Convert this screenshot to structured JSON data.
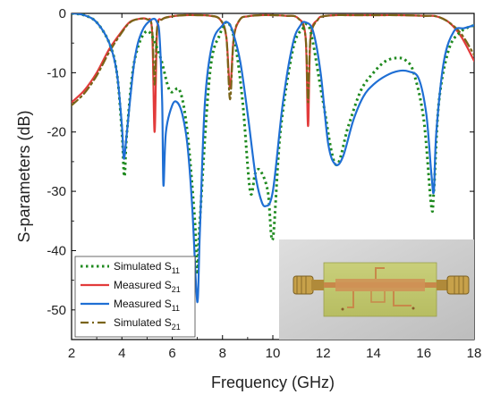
{
  "chart_data": {
    "type": "line",
    "title": "",
    "xlabel": "Frequency (GHz)",
    "ylabel": "S-parameters (dB)",
    "xlim": [
      2,
      18
    ],
    "ylim": [
      -55,
      0
    ],
    "xticks": [
      2,
      4,
      6,
      8,
      10,
      12,
      14,
      16,
      18
    ],
    "yticks": [
      0,
      -10,
      -20,
      -30,
      -40,
      -50
    ],
    "grid": false,
    "legend_position": "bottom-left",
    "inset_image": "photo of fabricated microstrip filter",
    "series": [
      {
        "name": "Simulated S11",
        "label_main": "Simulated S",
        "label_sub": "11",
        "color": "#1f8a1f",
        "style": "dotted",
        "x": [
          2,
          2.5,
          3,
          3.5,
          3.8,
          4.0,
          4.1,
          4.2,
          4.5,
          5.0,
          5.5,
          5.9,
          6.3,
          6.6,
          6.9,
          7.0,
          7.1,
          7.5,
          7.9,
          8.2,
          8.5,
          8.8,
          9.1,
          9.3,
          9.5,
          9.8,
          10.0,
          10.3,
          10.8,
          11.2,
          11.4,
          11.6,
          12.0,
          12.5,
          13.0,
          13.5,
          14.0,
          14.5,
          15.0,
          15.3,
          15.6,
          16.0,
          16.3,
          16.4,
          16.6,
          17.0,
          17.5,
          18
        ],
        "y": [
          0,
          -0.3,
          -1.5,
          -5,
          -10,
          -20,
          -27.5,
          -20,
          -8,
          -3,
          -7,
          -13,
          -13,
          -20,
          -35,
          -44,
          -35,
          -10,
          -3.5,
          -1.5,
          -5,
          -15,
          -30,
          -27,
          -26.5,
          -30,
          -38,
          -20,
          -6,
          -2.5,
          -2,
          -5,
          -15,
          -25.5,
          -19,
          -13,
          -10,
          -8,
          -7.5,
          -8,
          -10,
          -18,
          -32.5,
          -30,
          -15,
          -6,
          -3,
          -2
        ]
      },
      {
        "name": "Measured S21",
        "label_main": "Measured S",
        "label_sub": "21",
        "color": "#e23b3b",
        "style": "solid",
        "x": [
          2,
          2.5,
          3,
          3.5,
          4.0,
          4.3,
          4.6,
          5.0,
          5.2,
          5.3,
          5.4,
          5.6,
          6.0,
          6.5,
          7.0,
          7.5,
          7.9,
          8.15,
          8.3,
          8.45,
          8.7,
          9.0,
          9.5,
          10.0,
          10.5,
          11.0,
          11.3,
          11.4,
          11.5,
          11.8,
          12.0,
          12.5,
          13.0,
          14.0,
          15.0,
          16.0,
          16.5,
          17.0,
          17.5,
          18
        ],
        "y": [
          -15,
          -13,
          -10,
          -6,
          -3,
          -1.5,
          -1,
          -1,
          -3,
          -20,
          -3,
          -1,
          -0.5,
          -0.3,
          -0.3,
          -0.4,
          -1,
          -4,
          -12.5,
          -4,
          -1,
          -0.5,
          -0.3,
          -0.3,
          -0.4,
          -0.8,
          -4,
          -19,
          -4,
          -1,
          -0.5,
          -0.3,
          -0.3,
          -0.3,
          -0.3,
          -0.4,
          -0.5,
          -1.5,
          -4,
          -8
        ]
      },
      {
        "name": "Measured S11",
        "label_main": "Measured S",
        "label_sub": "11",
        "color": "#1f6fd4",
        "style": "solid",
        "x": [
          2,
          2.5,
          3,
          3.5,
          3.8,
          4.0,
          4.08,
          4.2,
          4.5,
          4.8,
          5.2,
          5.4,
          5.5,
          5.6,
          5.65,
          5.75,
          6.0,
          6.2,
          6.4,
          6.6,
          6.8,
          6.95,
          7.02,
          7.1,
          7.3,
          7.6,
          8.0,
          8.2,
          8.4,
          8.7,
          9.0,
          9.3,
          9.5,
          9.7,
          10.0,
          10.4,
          10.8,
          11.1,
          11.3,
          11.6,
          11.9,
          12.2,
          12.5,
          12.8,
          13.2,
          13.6,
          14.0,
          14.5,
          15.0,
          15.4,
          15.8,
          16.1,
          16.3,
          16.4,
          16.5,
          16.8,
          17.2,
          17.6,
          18
        ],
        "y": [
          0,
          -0.3,
          -1.5,
          -5,
          -10,
          -19,
          -24.5,
          -20,
          -8,
          -3,
          -1,
          -1.5,
          -4,
          -15,
          -29,
          -20,
          -15.5,
          -15,
          -17,
          -22,
          -33,
          -46,
          -48,
          -37,
          -15,
          -5,
          -2,
          -1.5,
          -3,
          -8,
          -17,
          -27,
          -31,
          -32.5,
          -30,
          -15,
          -5,
          -2,
          -1.5,
          -3,
          -10,
          -22,
          -25.5,
          -24,
          -18,
          -14,
          -12,
          -10.5,
          -9.7,
          -9.8,
          -11,
          -17,
          -27,
          -30,
          -20,
          -8,
          -3,
          -2.5,
          -2
        ]
      },
      {
        "name": "Simulated S21",
        "label_main": "Simulated S",
        "label_sub": "21",
        "color": "#7a6418",
        "style": "dashdot",
        "x": [
          2,
          2.5,
          3,
          3.5,
          4.0,
          4.3,
          4.6,
          5.0,
          5.2,
          5.3,
          5.4,
          5.6,
          6.0,
          6.5,
          7.0,
          7.5,
          7.9,
          8.15,
          8.3,
          8.45,
          8.7,
          9.0,
          9.5,
          10.0,
          10.5,
          11.0,
          11.3,
          11.4,
          11.5,
          11.8,
          12.0,
          12.5,
          13.0,
          14.0,
          15.0,
          16.0,
          16.5,
          17.0,
          17.5,
          18
        ],
        "y": [
          -15.5,
          -13.5,
          -10.5,
          -6.5,
          -3.2,
          -1.6,
          -1,
          -1,
          -2.5,
          -12,
          -2.5,
          -1,
          -0.5,
          -0.3,
          -0.3,
          -0.4,
          -1,
          -4,
          -14.5,
          -4,
          -1,
          -0.5,
          -0.3,
          -0.3,
          -0.4,
          -0.8,
          -4,
          -15,
          -4,
          -1,
          -0.5,
          -0.3,
          -0.3,
          -0.3,
          -0.3,
          -0.4,
          -0.5,
          -1.5,
          -3.5,
          -7
        ]
      }
    ]
  }
}
